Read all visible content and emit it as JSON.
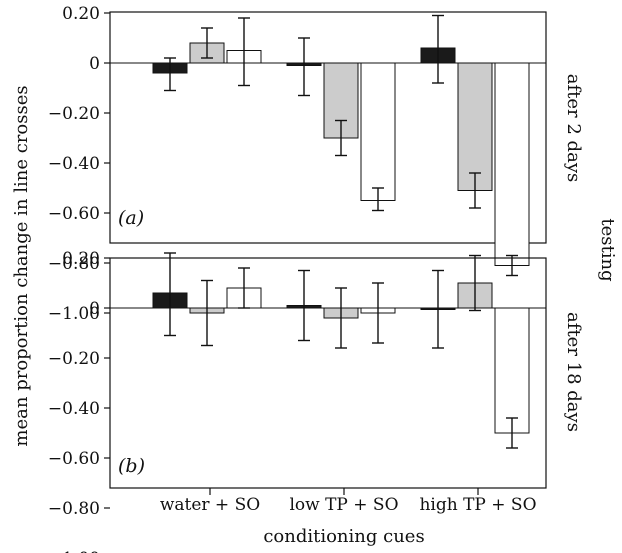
{
  "chart_data": {
    "type": "bar",
    "categories": [
      "water + SO",
      "low TP + SO",
      "high TP + SO"
    ],
    "xlabel": "conditioning cues",
    "ylabel": "mean proportion change in line crosses",
    "right_group_label": "testing",
    "ylim": [
      -1.05,
      0.3
    ],
    "yticks": [
      "0.20",
      "0",
      "−0.20",
      "−0.40",
      "−0.60",
      "−0.80",
      "−1.00"
    ],
    "bar_colors": [
      "#1a1a1a",
      "#cccccc",
      "#ffffff"
    ],
    "panels": [
      {
        "label": "(a)",
        "side_label": "after 2 days",
        "series": [
          {
            "values": [
              -0.04,
              -0.01,
              0.06
            ],
            "err_low": [
              -0.11,
              -0.13,
              -0.08
            ],
            "err_high": [
              0.02,
              0.1,
              0.19
            ]
          },
          {
            "values": [
              0.08,
              -0.3,
              -0.51
            ],
            "err_low": [
              0.02,
              -0.37,
              -0.58
            ],
            "err_high": [
              0.14,
              -0.23,
              -0.44
            ]
          },
          {
            "values": [
              0.05,
              -0.55,
              -0.81
            ],
            "err_low": [
              -0.09,
              -0.59,
              -0.85
            ],
            "err_high": [
              0.18,
              -0.5,
              -0.77
            ]
          }
        ]
      },
      {
        "label": "(b)",
        "side_label": "after 18 days",
        "series": [
          {
            "values": [
              0.06,
              0.01,
              0.0
            ],
            "err_low": [
              -0.11,
              -0.13,
              -0.16
            ],
            "err_high": [
              0.22,
              0.15,
              0.15
            ]
          },
          {
            "values": [
              -0.02,
              -0.04,
              0.1
            ],
            "err_low": [
              -0.15,
              -0.16,
              -0.01
            ],
            "err_high": [
              0.11,
              0.08,
              0.21
            ]
          },
          {
            "values": [
              0.08,
              -0.02,
              -0.5
            ],
            "err_low": [
              0.0,
              -0.14,
              -0.56
            ],
            "err_high": [
              0.16,
              0.1,
              -0.44
            ]
          }
        ]
      }
    ]
  }
}
